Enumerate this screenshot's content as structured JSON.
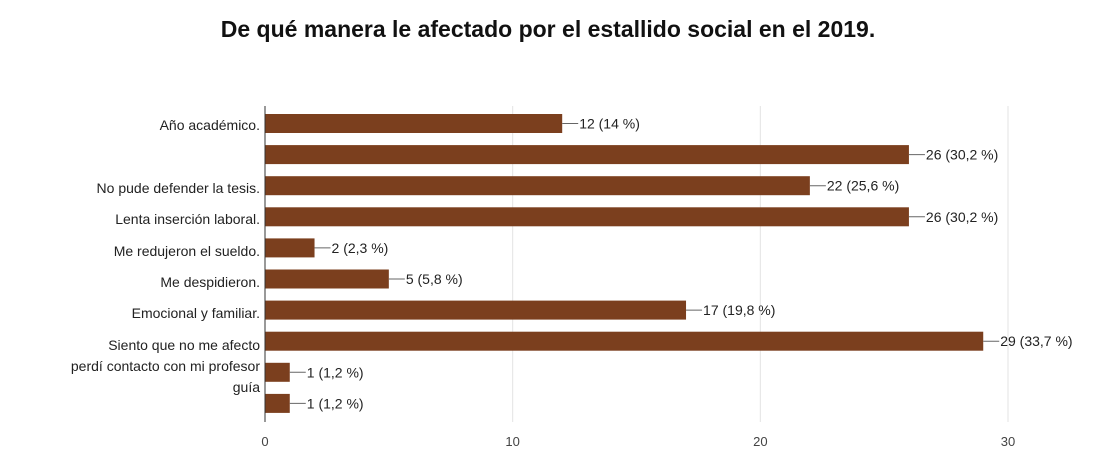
{
  "chart_data": {
    "type": "bar",
    "orientation": "horizontal",
    "title": "De qué manera le afectado por el estallido social en el 2019.",
    "xlabel": "",
    "ylabel": "",
    "xlim": [
      0,
      30
    ],
    "xticks": [
      "0",
      "10",
      "20",
      "30"
    ],
    "grid": true,
    "legend": "none",
    "bar_color": "#7B3F1E",
    "categories": [
      "Año académico.",
      "",
      "No pude defender la tesis.",
      "Lenta inserción laboral.",
      "Me redujeron el sueldo.",
      "Me despidieron.",
      "Emocional y familiar.",
      "Siento que no me afecto",
      "perdí contacto con mi profesor",
      "guía"
    ],
    "values": [
      12,
      26,
      22,
      26,
      2,
      5,
      17,
      29,
      1,
      1
    ],
    "data_labels": [
      "12 (14 %)",
      "26 (30,2 %)",
      "22 (25,6 %)",
      "26 (30,2 %)",
      "2 (2,3 %)",
      "5 (5,8 %)",
      "17 (19,8 %)",
      "29 (33,7 %)",
      "1 (1,2 %)",
      "1 (1,2 %)"
    ]
  }
}
